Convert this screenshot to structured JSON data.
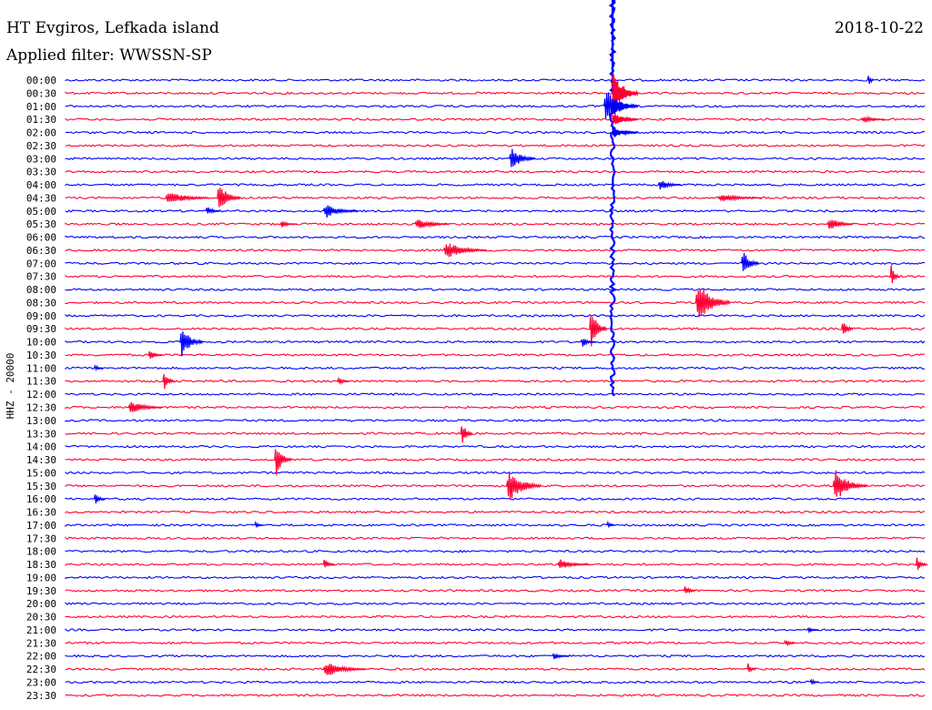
{
  "header": {
    "station": "HT Evgiros, Lefkada island",
    "date": "2018-10-22",
    "filter": "Applied filter: WWSSN-SP"
  },
  "chart_data": {
    "type": "line",
    "title": "HT Evgiros, Lefkada island",
    "date": "2018-10-22",
    "subtitle": "Applied filter: WWSSN-SP",
    "ylabel": "HHZ - 20000",
    "xlabel": "",
    "row_labels": [
      "00:00",
      "00:30",
      "01:00",
      "01:30",
      "02:00",
      "02:30",
      "03:00",
      "03:30",
      "04:00",
      "04:30",
      "05:00",
      "05:30",
      "06:00",
      "06:30",
      "07:00",
      "07:30",
      "08:00",
      "08:30",
      "09:00",
      "09:30",
      "10:00",
      "10:30",
      "11:00",
      "11:30",
      "12:00",
      "12:30",
      "13:00",
      "13:30",
      "14:00",
      "14:30",
      "15:00",
      "15:30",
      "16:00",
      "16:30",
      "17:00",
      "17:30",
      "18:00",
      "18:30",
      "19:00",
      "19:30",
      "20:00",
      "20:30",
      "21:00",
      "21:30",
      "22:00",
      "22:30",
      "23:00",
      "23:30"
    ],
    "row_minutes": 30,
    "trace_colors": [
      "#0000ff",
      "#ff0033"
    ],
    "grid": false,
    "events": [
      {
        "row": "00:00",
        "minute": 28.0,
        "amplitude": 14,
        "duration": 0.2
      },
      {
        "row": "00:30",
        "minute": 19.4,
        "amplitude": 6,
        "duration": 0.5
      },
      {
        "row": "01:00",
        "minute": 18.8,
        "amplitude": 30,
        "duration": 0.9
      },
      {
        "row": "01:30",
        "minute": 27.8,
        "amplitude": 5,
        "duration": 0.8
      },
      {
        "row": "02:00",
        "minute": 19.1,
        "amplitude": 12,
        "duration": 0.3
      },
      {
        "row": "03:00",
        "minute": 15.5,
        "amplitude": 16,
        "duration": 0.9
      },
      {
        "row": "04:00",
        "minute": 20.7,
        "amplitude": 8,
        "duration": 0.8
      },
      {
        "row": "04:30",
        "minute": 3.5,
        "amplitude": 10,
        "duration": 1.5
      },
      {
        "row": "04:30",
        "minute": 5.3,
        "amplitude": 22,
        "duration": 0.8
      },
      {
        "row": "04:30",
        "minute": 22.8,
        "amplitude": 6,
        "duration": 1.5
      },
      {
        "row": "05:00",
        "minute": 9.0,
        "amplitude": 10,
        "duration": 1.2
      },
      {
        "row": "05:00",
        "minute": 4.9,
        "amplitude": 7,
        "duration": 0.5
      },
      {
        "row": "05:30",
        "minute": 12.2,
        "amplitude": 8,
        "duration": 1.2
      },
      {
        "row": "05:30",
        "minute": 26.6,
        "amplitude": 10,
        "duration": 0.9
      },
      {
        "row": "05:30",
        "minute": 7.5,
        "amplitude": 5,
        "duration": 0.6
      },
      {
        "row": "06:30",
        "minute": 13.2,
        "amplitude": 12,
        "duration": 1.5
      },
      {
        "row": "07:00",
        "minute": 23.6,
        "amplitude": 20,
        "duration": 0.6
      },
      {
        "row": "07:30",
        "minute": 28.8,
        "amplitude": 18,
        "duration": 0.3
      },
      {
        "row": "08:30",
        "minute": 22.0,
        "amplitude": 30,
        "duration": 1.2
      },
      {
        "row": "09:30",
        "minute": 18.3,
        "amplitude": 28,
        "duration": 0.6
      },
      {
        "row": "09:30",
        "minute": 27.1,
        "amplitude": 14,
        "duration": 0.4
      },
      {
        "row": "10:00",
        "minute": 4.0,
        "amplitude": 22,
        "duration": 0.8
      },
      {
        "row": "10:00",
        "minute": 18.0,
        "amplitude": 8,
        "duration": 0.5
      },
      {
        "row": "10:30",
        "minute": 2.9,
        "amplitude": 7,
        "duration": 0.5
      },
      {
        "row": "11:00",
        "minute": 1.0,
        "amplitude": 6,
        "duration": 0.3
      },
      {
        "row": "11:30",
        "minute": 3.4,
        "amplitude": 14,
        "duration": 0.4
      },
      {
        "row": "11:30",
        "minute": 9.5,
        "amplitude": 6,
        "duration": 0.4
      },
      {
        "row": "12:30",
        "minute": 2.2,
        "amplitude": 9,
        "duration": 1.2
      },
      {
        "row": "13:30",
        "minute": 13.8,
        "amplitude": 20,
        "duration": 0.4
      },
      {
        "row": "14:30",
        "minute": 7.3,
        "amplitude": 24,
        "duration": 0.6
      },
      {
        "row": "15:30",
        "minute": 15.4,
        "amplitude": 22,
        "duration": 1.2
      },
      {
        "row": "15:30",
        "minute": 26.8,
        "amplitude": 22,
        "duration": 1.2
      },
      {
        "row": "16:00",
        "minute": 1.0,
        "amplitude": 8,
        "duration": 0.4
      },
      {
        "row": "17:00",
        "minute": 6.6,
        "amplitude": 5,
        "duration": 0.3
      },
      {
        "row": "17:00",
        "minute": 18.9,
        "amplitude": 5,
        "duration": 0.3
      },
      {
        "row": "18:30",
        "minute": 9.0,
        "amplitude": 9,
        "duration": 0.4
      },
      {
        "row": "18:30",
        "minute": 17.2,
        "amplitude": 7,
        "duration": 1.1
      },
      {
        "row": "18:30",
        "minute": 29.7,
        "amplitude": 10,
        "duration": 0.4
      },
      {
        "row": "19:30",
        "minute": 21.6,
        "amplitude": 7,
        "duration": 0.4
      },
      {
        "row": "21:00",
        "minute": 25.9,
        "amplitude": 4,
        "duration": 0.4
      },
      {
        "row": "21:30",
        "minute": 25.1,
        "amplitude": 5,
        "duration": 0.4
      },
      {
        "row": "22:00",
        "minute": 17.0,
        "amplitude": 5,
        "duration": 0.6
      },
      {
        "row": "22:30",
        "minute": 9.0,
        "amplitude": 11,
        "duration": 1.5
      },
      {
        "row": "22:30",
        "minute": 23.8,
        "amplitude": 9,
        "duration": 0.3
      },
      {
        "row": "23:00",
        "minute": 26.0,
        "amplitude": 6,
        "duration": 0.3
      }
    ],
    "major_event": {
      "row": "00:30",
      "minute": 19.1,
      "peak_row": "00:00",
      "end_row": "12:00"
    }
  }
}
